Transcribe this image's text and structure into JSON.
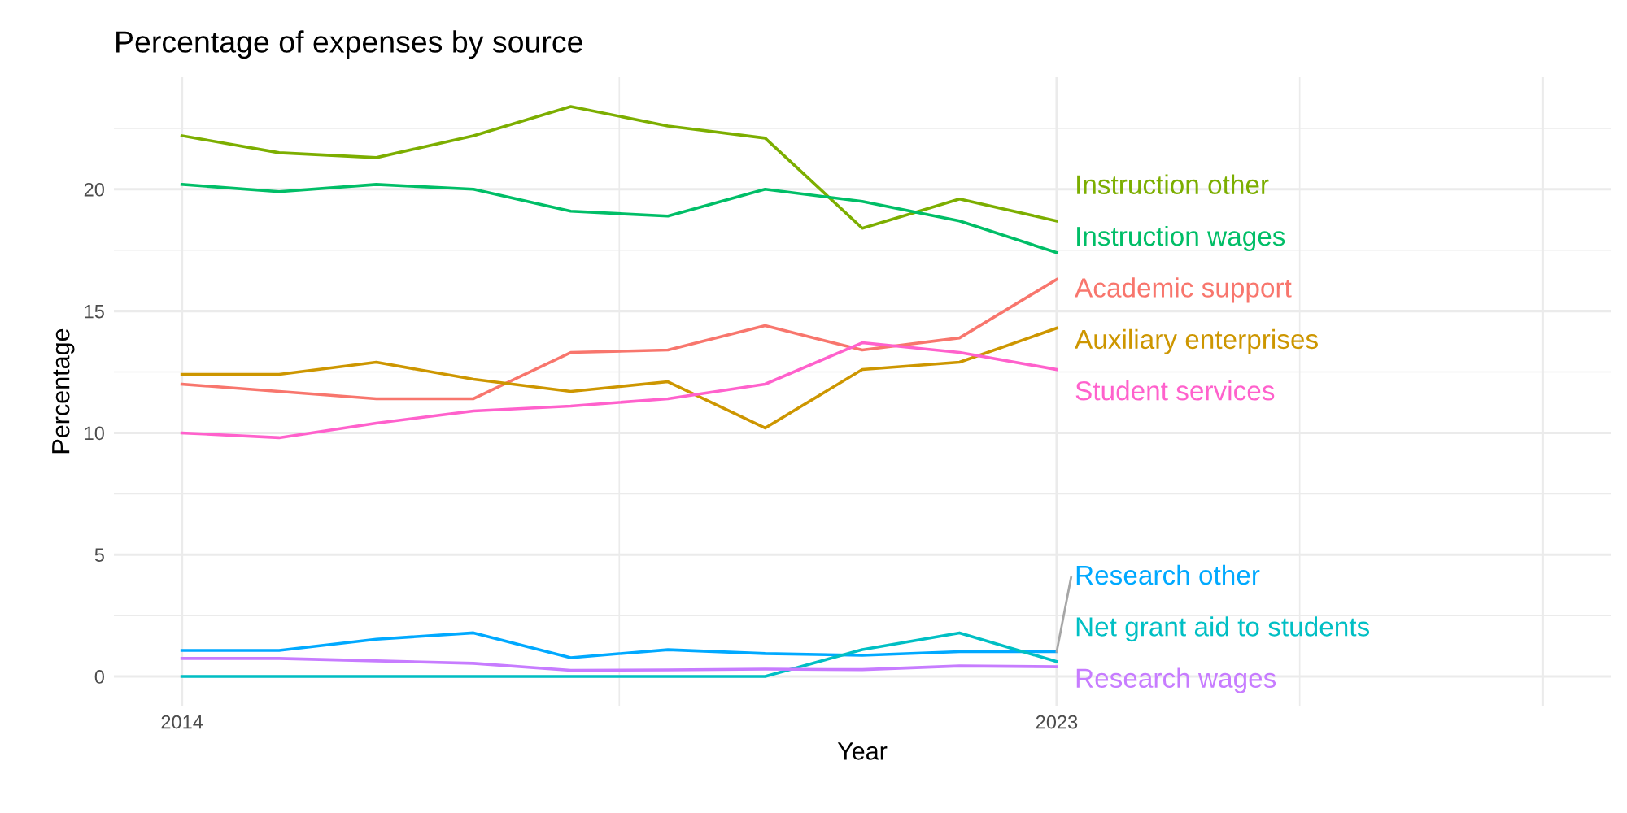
{
  "chart_data": {
    "type": "line",
    "title": "Percentage of expenses by source",
    "xlabel": "Year",
    "ylabel": "Percentage",
    "x": [
      2014,
      2015,
      2016,
      2017,
      2018,
      2019,
      2020,
      2021,
      2022,
      2023
    ],
    "xlim": [
      2013.3,
      2028.7
    ],
    "xticks": [
      2014,
      2023,
      {
        "value": 2028,
        "label": null
      }
    ],
    "ylim": [
      -1.2,
      24.6
    ],
    "yticks": [
      0,
      5,
      10,
      15,
      20
    ],
    "grid": true,
    "legend": false,
    "marker": "none",
    "line_style": "solid",
    "series": [
      {
        "name": "Instruction other",
        "color": "#7cae00",
        "values": [
          22.2,
          21.5,
          21.3,
          22.2,
          23.4,
          22.6,
          22.1,
          18.4,
          19.6,
          18.7
        ]
      },
      {
        "name": "Instruction wages",
        "color": "#00be67",
        "values": [
          20.2,
          19.9,
          20.2,
          20.0,
          19.1,
          18.9,
          20.0,
          19.5,
          18.7,
          17.4
        ]
      },
      {
        "name": "Academic support",
        "color": "#f8766d",
        "values": [
          12.0,
          11.7,
          11.4,
          11.4,
          13.3,
          13.4,
          14.4,
          13.4,
          13.9,
          16.3
        ]
      },
      {
        "name": "Auxiliary enterprises",
        "color": "#cd9600",
        "values": [
          12.4,
          12.4,
          12.9,
          12.2,
          11.7,
          12.1,
          10.2,
          12.6,
          12.9,
          14.3
        ]
      },
      {
        "name": "Student services",
        "color": "#ff61cc",
        "values": [
          10.0,
          9.8,
          10.4,
          10.9,
          11.1,
          11.4,
          12.0,
          13.7,
          13.3,
          12.6
        ]
      },
      {
        "name": "Research other",
        "color": "#00a9ff",
        "values": [
          1.07,
          1.07,
          1.53,
          1.79,
          0.77,
          1.1,
          0.94,
          0.87,
          1.02,
          1.02
        ]
      },
      {
        "name": "Net grant aid to students",
        "color": "#00bfc4",
        "values": [
          0,
          0,
          0,
          0,
          0,
          0,
          0,
          1.1,
          1.79,
          0.61
        ]
      },
      {
        "name": "Research wages",
        "color": "#c77cff",
        "values": [
          0.74,
          0.74,
          0.64,
          0.54,
          0.25,
          0.27,
          0.3,
          0.28,
          0.43,
          0.4
        ]
      }
    ]
  }
}
